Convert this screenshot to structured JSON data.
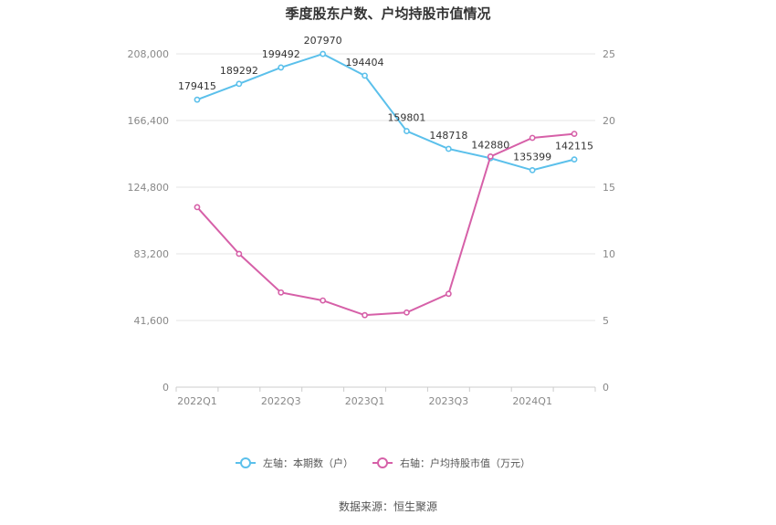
{
  "title": "季度股东户数、户均持股市值情况",
  "source": "数据来源：恒生聚源",
  "colors": {
    "left_series": "#5BC0EB",
    "right_series": "#D660A8",
    "grid": "#E6E6E6",
    "axis": "#CCCCCC"
  },
  "chart_data": {
    "type": "line",
    "title": "季度股东户数、户均持股市值情况",
    "x": [
      "2022Q1",
      "2022Q2",
      "2022Q3",
      "2022Q4",
      "2023Q1",
      "2023Q2",
      "2023Q3",
      "2023Q4",
      "2024Q1",
      "2024Q2"
    ],
    "x_tick_labels": [
      "2022Q1",
      "2022Q3",
      "2023Q1",
      "2023Q3",
      "2024Q1"
    ],
    "left_axis": {
      "ylim": [
        0,
        208000
      ],
      "ticks": [
        "0",
        "41,600",
        "83,200",
        "124,800",
        "166,400",
        "208,000"
      ]
    },
    "right_axis": {
      "ylim": [
        0,
        25
      ],
      "ticks": [
        "0",
        "5",
        "10",
        "15",
        "20",
        "25"
      ]
    },
    "grid": true,
    "legend_position": "bottom",
    "series": [
      {
        "name": "左轴：本期数（户）",
        "axis": "left",
        "show_labels": true,
        "values": [
          179415,
          189292,
          199492,
          207970,
          194404,
          159801,
          148718,
          142880,
          135399,
          142115
        ]
      },
      {
        "name": "右轴：户均持股市值（万元）",
        "axis": "right",
        "show_labels": false,
        "values": [
          13.5,
          10.0,
          7.1,
          6.5,
          5.4,
          5.6,
          7.0,
          17.3,
          18.7,
          19.0
        ]
      }
    ]
  }
}
